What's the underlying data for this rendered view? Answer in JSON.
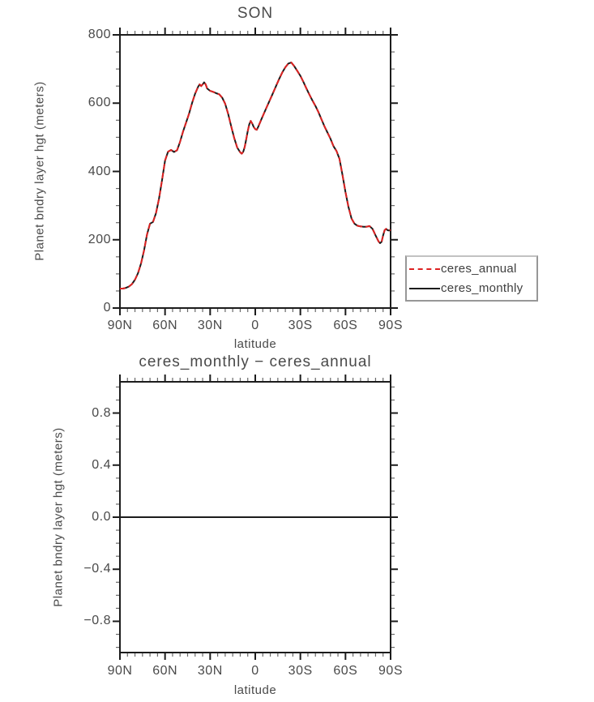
{
  "figure": {
    "background": "#ffffff",
    "text_color": "#4a4a4a",
    "axis_color": "#1c1c1c",
    "minor_tick_color": "#6a6a6a"
  },
  "chart_data": [
    {
      "type": "line",
      "title": "SON",
      "xlabel": "latitude",
      "ylabel": "Planet bndry layer hgt (meters)",
      "xlim": [
        90,
        -90
      ],
      "ylim": [
        0,
        800
      ],
      "grid": false,
      "legend_position": "outside-right-bottom",
      "xticks": {
        "major": [
          90,
          60,
          30,
          0,
          -30,
          -60,
          -90
        ],
        "labels": [
          "90N",
          "60N",
          "30N",
          "0",
          "30S",
          "60S",
          "90S"
        ],
        "minor_step": 5
      },
      "yticks": {
        "major": [
          0,
          200,
          400,
          600,
          800
        ],
        "labels": [
          "0",
          "200",
          "400",
          "600",
          "800"
        ],
        "minor_step": 50
      },
      "x": [
        90,
        88,
        86,
        84,
        82,
        80,
        78,
        76,
        74,
        72,
        70,
        68,
        66,
        64,
        62,
        60,
        58,
        56,
        54,
        52,
        50,
        48,
        46,
        44,
        42,
        40,
        38,
        37,
        36,
        35,
        34,
        33,
        32,
        30,
        28,
        26,
        24,
        22,
        20,
        18,
        16,
        14,
        12,
        10,
        9,
        8,
        7,
        6,
        5,
        4,
        3,
        2,
        1,
        0,
        -1,
        -2,
        -4,
        -6,
        -8,
        -10,
        -12,
        -14,
        -16,
        -18,
        -20,
        -22,
        -24,
        -26,
        -28,
        -30,
        -32,
        -34,
        -36,
        -38,
        -40,
        -42,
        -44,
        -46,
        -48,
        -50,
        -52,
        -54,
        -56,
        -58,
        -60,
        -62,
        -64,
        -66,
        -68,
        -70,
        -72,
        -74,
        -76,
        -78,
        -80,
        -82,
        -83,
        -84,
        -85,
        -86,
        -87,
        -88,
        -89,
        -90
      ],
      "shared_values": [
        57,
        57,
        59,
        63,
        70,
        83,
        102,
        130,
        168,
        215,
        247,
        252,
        278,
        320,
        375,
        432,
        458,
        463,
        457,
        462,
        487,
        517,
        543,
        570,
        601,
        628,
        648,
        655,
        650,
        655,
        661,
        655,
        643,
        636,
        633,
        629,
        626,
        616,
        598,
        568,
        532,
        498,
        470,
        456,
        452,
        458,
        472,
        495,
        518,
        538,
        548,
        540,
        530,
        524,
        522,
        531,
        552,
        572,
        592,
        612,
        632,
        652,
        672,
        690,
        705,
        716,
        719,
        708,
        694,
        680,
        662,
        643,
        625,
        608,
        592,
        574,
        553,
        532,
        514,
        496,
        474,
        460,
        437,
        390,
        340,
        296,
        262,
        247,
        241,
        239,
        238,
        238,
        240,
        232,
        213,
        195,
        190,
        194,
        212,
        228,
        232,
        228,
        227,
        229
      ],
      "series": [
        {
          "name": "ceres_annual",
          "color": "#dd2222",
          "line_style": "dashed",
          "values_from": "shared_values"
        },
        {
          "name": "ceres_monthly",
          "color": "#1c1c1c",
          "line_style": "solid",
          "values_from": "shared_values"
        }
      ]
    },
    {
      "type": "line",
      "title": "ceres_monthly − ceres_annual",
      "xlabel": "latitude",
      "ylabel": "Planet bndry layer hgt (meters)",
      "xlim": [
        90,
        -90
      ],
      "ylim": [
        -1.04,
        1.04
      ],
      "grid": false,
      "xticks": {
        "major": [
          90,
          60,
          30,
          0,
          -30,
          -60,
          -90
        ],
        "labels": [
          "90N",
          "60N",
          "30N",
          "0",
          "30S",
          "60S",
          "90S"
        ],
        "minor_step": 5
      },
      "yticks": {
        "major": [
          -0.8,
          -0.4,
          0,
          0.4,
          0.8
        ],
        "labels": [
          "−0.8",
          "−0.4",
          "0.0",
          "0.4",
          "0.8"
        ],
        "minor_step": 0.1
      },
      "x": [
        90,
        -90
      ],
      "series": [
        {
          "name": "",
          "color": "#1c1c1c",
          "line_style": "solid",
          "values": [
            0,
            0
          ]
        }
      ]
    }
  ]
}
